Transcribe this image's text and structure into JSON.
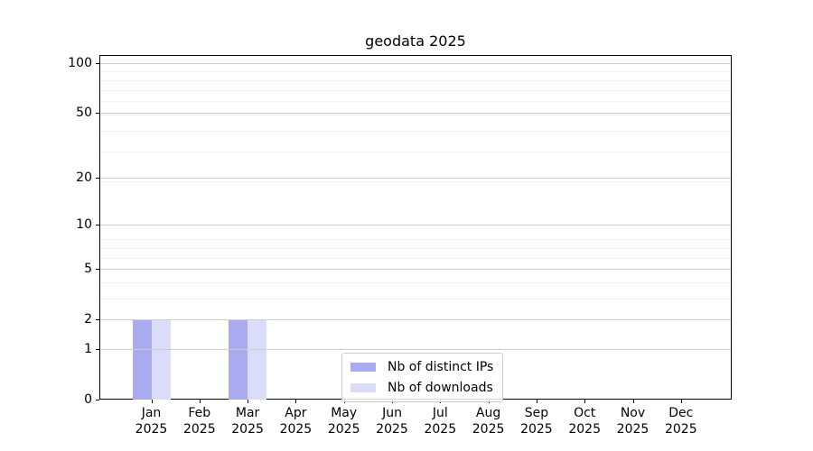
{
  "chart_data": {
    "type": "bar",
    "title": "geodata 2025",
    "x_tick_months": [
      "Jan",
      "Feb",
      "Mar",
      "Apr",
      "May",
      "Jun",
      "Jul",
      "Aug",
      "Sep",
      "Oct",
      "Nov",
      "Dec"
    ],
    "x_tick_year": "2025",
    "series": [
      {
        "name": "Nb of distinct IPs",
        "color": "#aaaaf0",
        "values": [
          2,
          0,
          2,
          0,
          0,
          0,
          0,
          0,
          0,
          0,
          0,
          0
        ]
      },
      {
        "name": "Nb of downloads",
        "color": "#dbdbfa",
        "values": [
          2,
          0,
          2,
          0,
          0,
          0,
          0,
          0,
          0,
          0,
          0,
          0
        ]
      }
    ],
    "y_ticks": [
      0,
      1,
      2,
      5,
      10,
      20,
      50,
      100
    ],
    "yscale": "log(value+1)",
    "ylim": [
      0,
      112
    ],
    "grid": "horizontal major+minor, drawn over bars",
    "legend_position": "lower center",
    "colors": {
      "major_grid": "#cdcdcd",
      "minor_grid": "#efefef",
      "axis": "#000000",
      "legend_border": "#cccccc"
    }
  }
}
